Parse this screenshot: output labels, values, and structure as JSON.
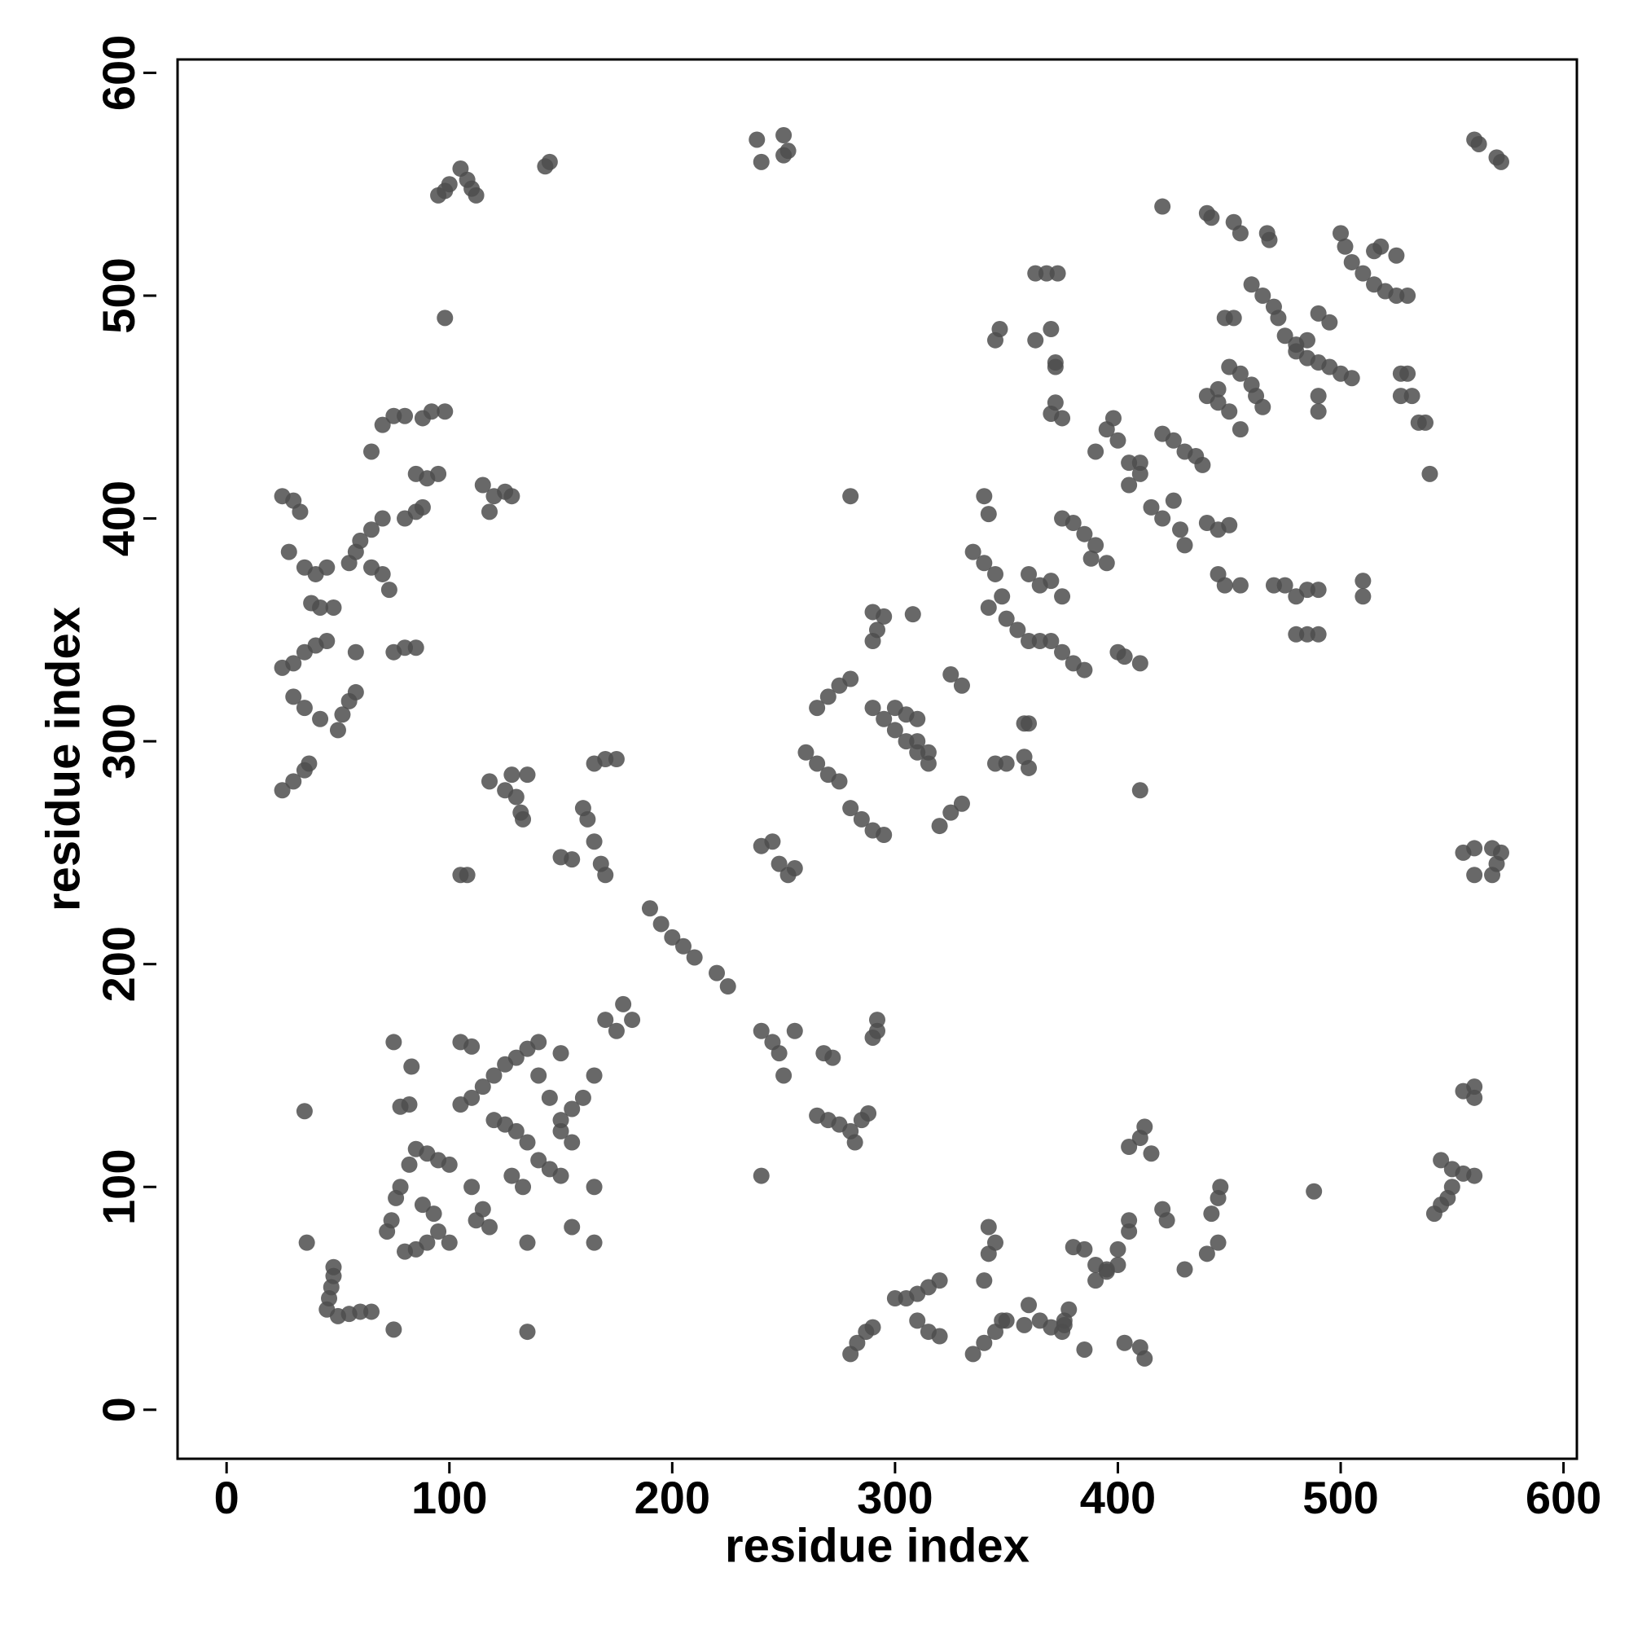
{
  "chart_data": {
    "type": "scatter",
    "xlabel": "residue index",
    "ylabel": "residue index",
    "color": "#4d4d4d",
    "xlim": [
      -22,
      606
    ],
    "ylim": [
      -22,
      606
    ],
    "xticks": [
      0,
      100,
      200,
      300,
      400,
      500,
      600
    ],
    "yticks": [
      0,
      100,
      200,
      300,
      400,
      500,
      600
    ],
    "x": [
      45,
      46,
      47,
      48,
      48,
      50,
      55,
      60,
      65,
      36,
      35,
      75,
      75,
      83,
      72,
      74,
      76,
      78,
      80,
      85,
      90,
      95,
      100,
      93,
      88,
      82,
      85,
      90,
      95,
      100,
      78,
      82,
      105,
      110,
      115,
      120,
      125,
      130,
      135,
      140,
      105,
      110,
      112,
      118,
      115,
      110,
      125,
      130,
      135,
      140,
      145,
      150,
      150,
      155,
      160,
      165,
      140,
      145,
      150,
      155,
      135,
      135,
      155,
      165,
      165,
      150,
      170,
      175,
      178,
      182,
      120,
      128,
      133,
      190,
      195,
      200,
      205,
      210,
      220,
      225,
      240,
      245,
      248,
      250,
      240,
      255,
      268,
      272,
      265,
      270,
      275,
      280,
      282,
      285,
      288,
      290,
      292,
      292,
      240,
      245,
      248,
      252,
      255,
      238,
      240,
      250,
      252,
      250,
      160,
      162,
      165,
      168,
      170,
      150,
      155,
      165,
      170,
      175,
      105,
      108,
      118,
      125,
      130,
      132,
      135,
      128,
      133,
      260,
      265,
      270,
      275,
      280,
      285,
      290,
      295,
      265,
      270,
      275,
      280,
      290,
      295,
      300,
      305,
      310,
      315,
      300,
      305,
      310,
      310,
      315,
      290,
      292,
      290,
      295,
      308,
      280,
      320,
      325,
      330,
      325,
      330,
      335,
      340,
      345,
      348,
      342,
      350,
      355,
      360,
      365,
      370,
      375,
      380,
      385,
      365,
      370,
      375,
      360,
      340,
      342,
      345,
      350,
      358,
      360,
      358,
      360,
      400,
      403,
      410,
      410,
      395,
      390,
      385,
      375,
      380,
      388,
      345,
      347,
      363,
      368,
      373,
      363,
      370,
      372,
      372,
      370,
      375,
      372,
      390,
      395,
      398,
      400,
      405,
      410,
      405,
      410,
      415,
      420,
      425,
      428,
      430,
      420,
      425,
      430,
      435,
      438,
      440,
      445,
      450,
      440,
      445,
      450,
      455,
      445,
      450,
      455,
      460,
      462,
      465,
      448,
      452,
      460,
      465,
      470,
      472,
      475,
      480,
      485,
      490,
      495,
      500,
      505,
      480,
      490,
      490,
      485,
      490,
      495,
      500,
      502,
      505,
      510,
      515,
      520,
      525,
      530,
      515,
      518,
      525,
      527,
      530,
      527,
      532,
      535,
      538,
      540,
      420,
      440,
      442,
      452,
      455,
      467,
      468,
      445,
      448,
      455,
      470,
      475,
      480,
      485,
      490,
      480,
      485,
      490,
      510,
      510,
      560,
      562,
      570,
      572,
      145,
      143,
      95,
      98,
      100,
      105,
      108,
      110,
      112,
      98,
      25,
      30,
      33,
      28,
      35,
      40,
      45,
      38,
      42,
      48,
      25,
      30,
      35,
      40,
      45,
      30,
      35,
      42,
      50,
      52,
      55,
      58,
      58,
      25,
      30,
      35,
      37,
      65,
      70,
      75,
      80,
      88,
      92,
      98,
      85,
      90,
      95,
      80,
      85,
      88,
      70,
      65,
      60,
      58,
      55,
      65,
      70,
      73,
      75,
      80,
      85,
      115,
      120,
      125,
      128,
      118,
      555,
      560,
      568,
      572,
      560,
      568,
      570,
      560,
      555,
      560,
      545,
      550,
      555,
      560,
      545,
      548,
      550,
      542,
      280,
      283,
      287,
      290,
      300,
      305,
      310,
      315,
      320,
      310,
      315,
      320,
      335,
      340,
      345,
      348,
      340,
      342,
      345,
      342,
      358,
      360,
      365,
      370,
      375,
      376,
      378,
      376,
      385,
      380,
      385,
      390,
      395,
      400,
      400,
      405,
      405,
      390,
      395,
      403,
      410,
      412,
      405,
      410,
      412,
      415,
      420,
      422,
      430,
      440,
      445,
      442,
      445,
      446,
      488,
      350
    ],
    "values": [
      45,
      50,
      55,
      60,
      64,
      42,
      43,
      44,
      44,
      75,
      134,
      165,
      36,
      154,
      80,
      85,
      95,
      100,
      71,
      72,
      75,
      80,
      75,
      88,
      92,
      110,
      117,
      115,
      112,
      110,
      136,
      137,
      137,
      140,
      145,
      150,
      155,
      158,
      162,
      165,
      165,
      163,
      85,
      82,
      90,
      100,
      128,
      125,
      120,
      112,
      108,
      105,
      125,
      135,
      140,
      150,
      150,
      140,
      130,
      120,
      75,
      35,
      82,
      75,
      100,
      160,
      175,
      170,
      182,
      175,
      130,
      105,
      100,
      225,
      218,
      212,
      208,
      203,
      196,
      190,
      170,
      165,
      160,
      150,
      105,
      170,
      160,
      158,
      132,
      130,
      128,
      125,
      120,
      130,
      133,
      167,
      170,
      175,
      253,
      255,
      245,
      240,
      243,
      570,
      560,
      572,
      565,
      563,
      270,
      265,
      255,
      245,
      240,
      248,
      247,
      290,
      292,
      292,
      240,
      240,
      282,
      278,
      275,
      268,
      285,
      285,
      265,
      295,
      290,
      285,
      282,
      270,
      265,
      260,
      258,
      315,
      320,
      325,
      328,
      315,
      310,
      305,
      300,
      295,
      290,
      315,
      312,
      310,
      300,
      295,
      345,
      350,
      358,
      356,
      357,
      410,
      262,
      268,
      272,
      330,
      325,
      385,
      380,
      375,
      365,
      360,
      355,
      350,
      345,
      345,
      345,
      340,
      335,
      332,
      370,
      372,
      365,
      375,
      410,
      402,
      290,
      290,
      293,
      288,
      308,
      308,
      340,
      338,
      335,
      278,
      380,
      388,
      393,
      400,
      398,
      382,
      480,
      485,
      510,
      510,
      510,
      480,
      485,
      470,
      452,
      447,
      445,
      468,
      430,
      440,
      445,
      435,
      425,
      425,
      415,
      420,
      405,
      400,
      408,
      395,
      388,
      438,
      435,
      430,
      428,
      424,
      398,
      395,
      397,
      455,
      452,
      448,
      440,
      458,
      468,
      465,
      460,
      455,
      450,
      490,
      490,
      505,
      500,
      495,
      490,
      482,
      478,
      472,
      470,
      468,
      465,
      463,
      475,
      448,
      455,
      480,
      492,
      488,
      528,
      522,
      515,
      510,
      505,
      502,
      500,
      500,
      520,
      522,
      518,
      465,
      465,
      455,
      455,
      443,
      443,
      420,
      540,
      537,
      535,
      533,
      528,
      528,
      525,
      375,
      370,
      370,
      370,
      370,
      365,
      368,
      368,
      348,
      348,
      348,
      372,
      365,
      570,
      568,
      562,
      560,
      560,
      558,
      545,
      547,
      550,
      557,
      552,
      548,
      545,
      490,
      410,
      408,
      403,
      385,
      378,
      375,
      378,
      362,
      360,
      360,
      333,
      335,
      340,
      343,
      345,
      320,
      315,
      310,
      305,
      312,
      318,
      322,
      340,
      278,
      282,
      287,
      290,
      430,
      442,
      446,
      446,
      445,
      448,
      448,
      420,
      418,
      420,
      400,
      403,
      405,
      400,
      395,
      390,
      385,
      380,
      378,
      375,
      368,
      340,
      342,
      342,
      415,
      410,
      412,
      410,
      403,
      250,
      252,
      252,
      250,
      240,
      240,
      245,
      145,
      143,
      140,
      112,
      108,
      106,
      105,
      92,
      95,
      100,
      88,
      25,
      30,
      35,
      37,
      50,
      50,
      52,
      55,
      58,
      40,
      35,
      33,
      25,
      30,
      35,
      40,
      58,
      70,
      75,
      82,
      38,
      47,
      40,
      37,
      35,
      40,
      45,
      38,
      27,
      73,
      72,
      65,
      63,
      65,
      72,
      80,
      85,
      58,
      62,
      30,
      28,
      23,
      118,
      122,
      127,
      115,
      90,
      85,
      63,
      70,
      75,
      88,
      95,
      100,
      98,
      40
    ]
  }
}
